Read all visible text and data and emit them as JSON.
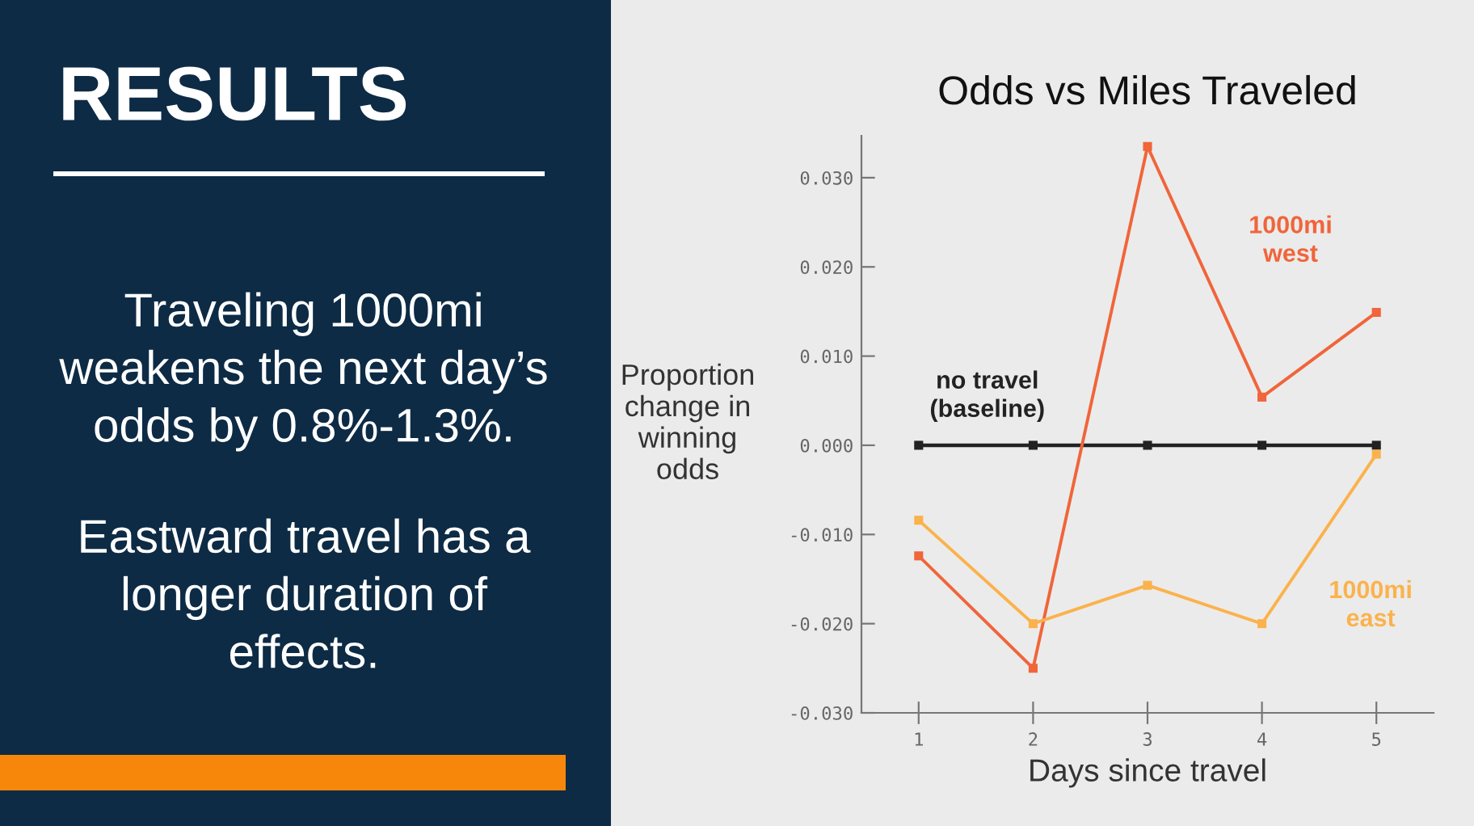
{
  "chart_data": {
    "type": "line",
    "title": "Odds vs Miles Traveled",
    "xlabel": "Days since travel",
    "ylabel": "Proportion\nchange in\nwinning\nodds",
    "x": [
      1,
      2,
      3,
      4,
      5
    ],
    "xlim": [
      0.5,
      5.5
    ],
    "xticks": [
      1,
      2,
      3,
      4,
      5
    ],
    "ylim": [
      -0.03,
      0.0347
    ],
    "yticks": [
      {
        "value": -0.03,
        "label": "-0.030"
      },
      {
        "value": -0.02,
        "label": "-0.020"
      },
      {
        "value": -0.01,
        "label": "-0.010"
      },
      {
        "value": 0.0,
        "label": "0.000"
      },
      {
        "value": 0.01,
        "label": "0.010"
      },
      {
        "value": 0.02,
        "label": "0.020"
      },
      {
        "value": 0.03,
        "label": "0.030"
      }
    ],
    "series": [
      {
        "name": "no travel\n(baseline)",
        "color": "#222222",
        "values": [
          0,
          0,
          0,
          0,
          0
        ]
      },
      {
        "name": "1000mi\nwest",
        "color": "#f0653a",
        "values": [
          -0.0124,
          -0.025,
          0.0335,
          0.0054,
          0.0149
        ]
      },
      {
        "name": "1000mi\neast",
        "color": "#fbb24c",
        "values": [
          -0.0084,
          -0.02,
          -0.0157,
          -0.02,
          -0.001
        ]
      }
    ],
    "marker": "square",
    "grid": false,
    "legend": false,
    "annotations": [
      "RESULTS",
      "Traveling 1000mi\nweakens the next day’s\nodds by 0.8%-1.3%.",
      "Eastward travel has a\nlonger duration of\neffects."
    ]
  }
}
